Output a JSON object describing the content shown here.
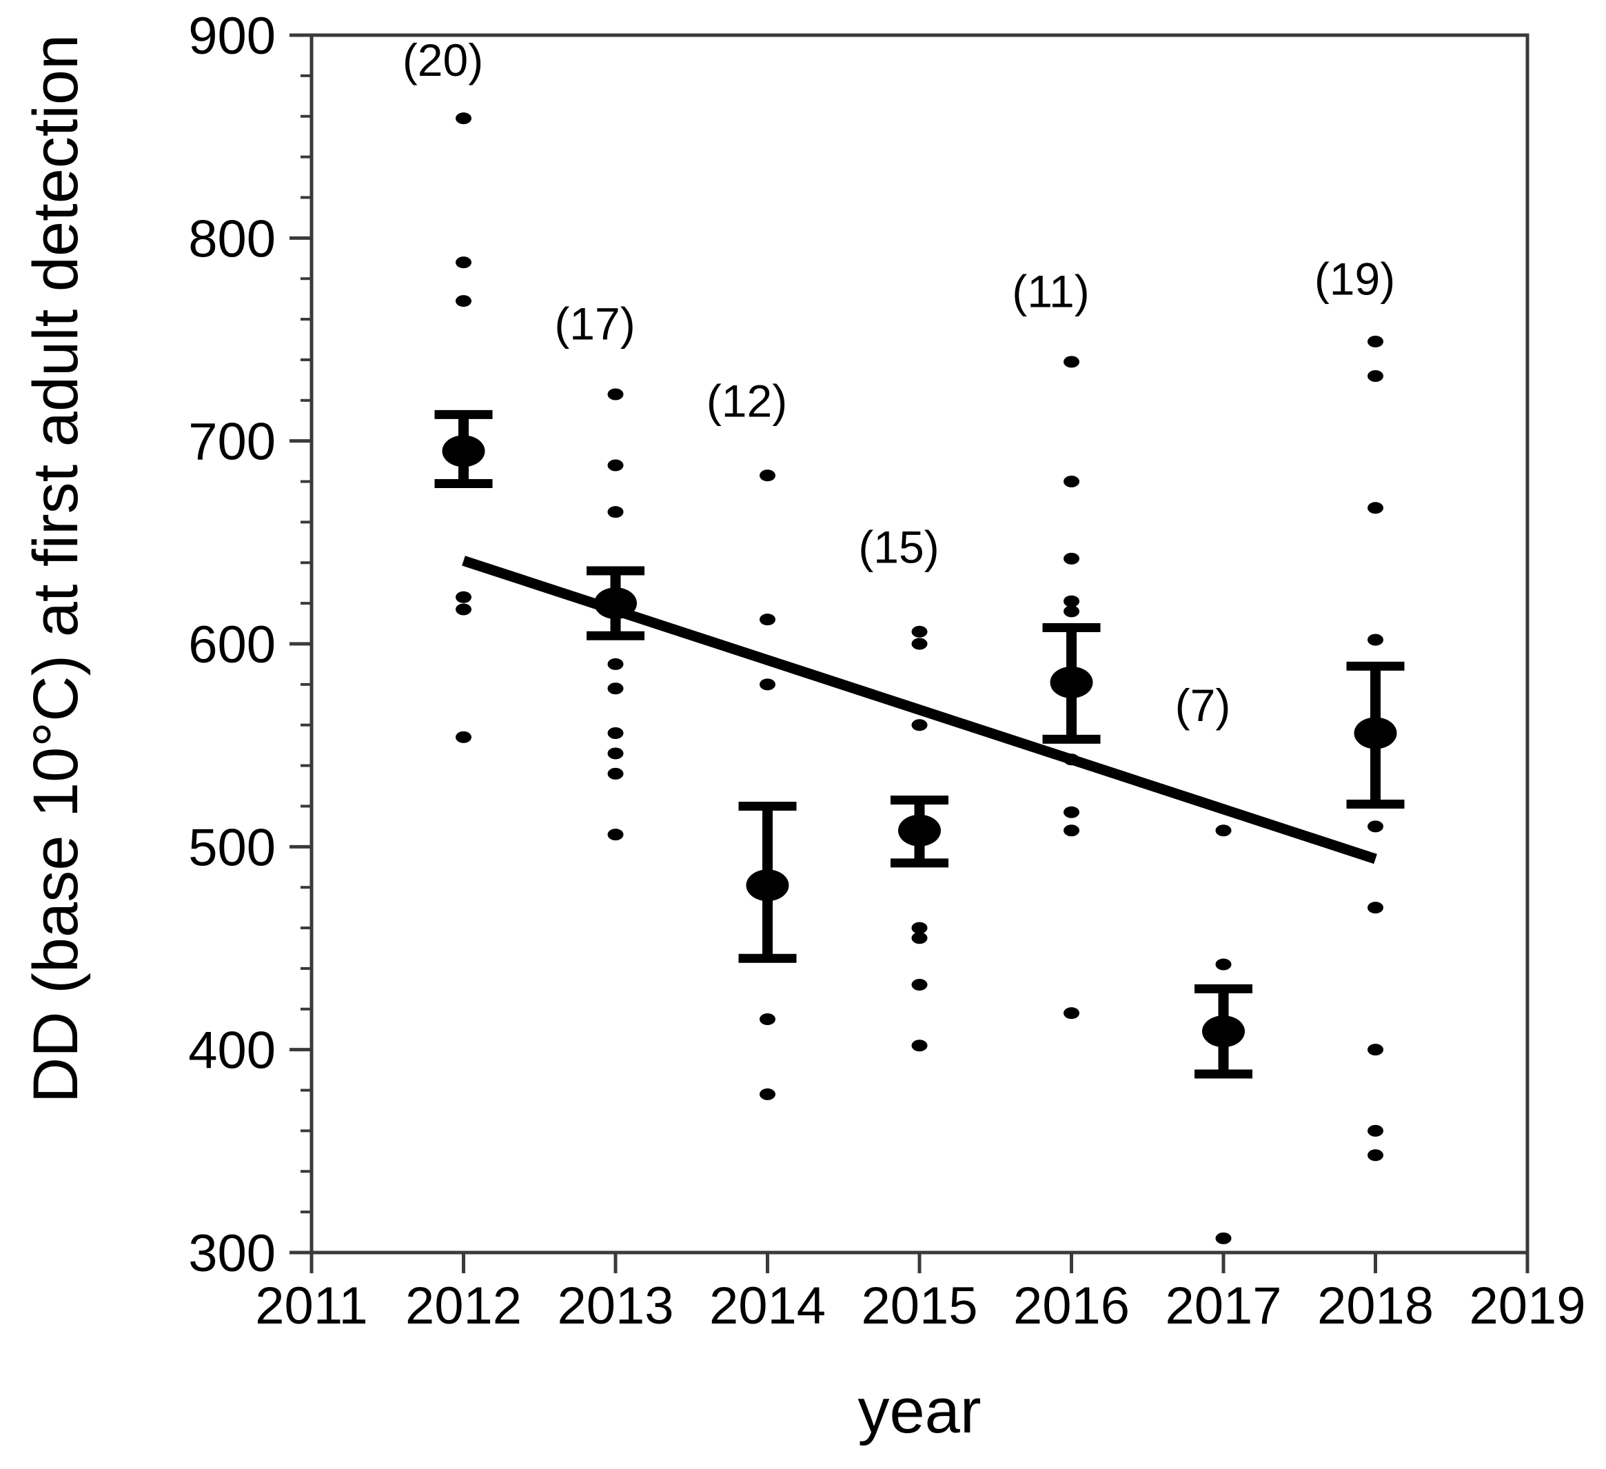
{
  "figure": {
    "background": "#ffffff",
    "ink_color": "#000000",
    "frame_color": "#3a3a3a"
  },
  "chart_data": {
    "type": "scatter",
    "title": "",
    "xlabel": "year",
    "ylabel": "DD (base 10°C) at first adult detection",
    "xlim": [
      2011,
      2019
    ],
    "ylim": [
      300,
      900
    ],
    "x_ticks": [
      2011,
      2012,
      2013,
      2014,
      2015,
      2016,
      2017,
      2018,
      2019
    ],
    "y_ticks": [
      300,
      400,
      500,
      600,
      700,
      800,
      900
    ],
    "y_minor_step": 20,
    "grid": false,
    "legend_position": "none",
    "series": [
      {
        "year": 2012,
        "n": 20,
        "n_label": "(20)",
        "label_value": 880,
        "points": [
          859,
          788,
          769,
          623,
          617,
          554
        ],
        "mean": 695,
        "ci_low": 679,
        "ci_high": 713
      },
      {
        "year": 2013,
        "n": 17,
        "n_label": "(17)",
        "label_value": 750,
        "points": [
          723,
          688,
          665,
          590,
          578,
          556,
          546,
          536,
          506
        ],
        "mean": 620,
        "ci_low": 604,
        "ci_high": 636
      },
      {
        "year": 2014,
        "n": 12,
        "n_label": "(12)",
        "label_value": 712,
        "points": [
          683,
          612,
          580,
          415,
          378
        ],
        "mean": 481,
        "ci_low": 445,
        "ci_high": 520
      },
      {
        "year": 2015,
        "n": 15,
        "n_label": "(15)",
        "label_value": 640,
        "points": [
          606,
          600,
          560,
          460,
          455,
          432,
          402
        ],
        "mean": 508,
        "ci_low": 492,
        "ci_high": 523
      },
      {
        "year": 2016,
        "n": 11,
        "n_label": "(11)",
        "label_value": 766,
        "points": [
          739,
          680,
          642,
          621,
          616,
          543,
          517,
          508,
          418
        ],
        "mean": 581,
        "ci_low": 553,
        "ci_high": 608
      },
      {
        "year": 2017,
        "n": 7,
        "n_label": "(7)",
        "label_value": 562,
        "points": [
          508,
          442,
          307
        ],
        "mean": 409,
        "ci_low": 388,
        "ci_high": 430
      },
      {
        "year": 2018,
        "n": 19,
        "n_label": "(19)",
        "label_value": 772,
        "points": [
          749,
          732,
          667,
          602,
          510,
          470,
          400,
          360,
          348
        ],
        "mean": 556,
        "ci_low": 521,
        "ci_high": 589
      }
    ],
    "trend_line": {
      "x1": 2012,
      "y1": 641,
      "x2": 2018,
      "y2": 494
    }
  }
}
